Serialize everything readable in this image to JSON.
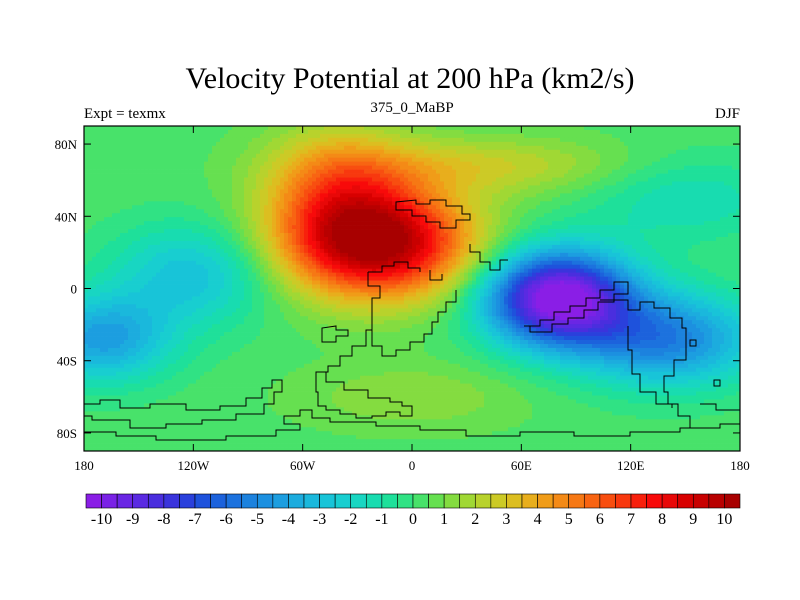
{
  "chart_data": {
    "type": "heatmap",
    "title": "Velocity Potential at 200 hPa (km2/s)",
    "left_subtitle": "Expt = texmx",
    "center_subtitle": "375_0_MaBP",
    "right_subtitle": "DJF",
    "x_range": [
      -180,
      180
    ],
    "y_range": [
      -90,
      90
    ],
    "x_ticks": [
      {
        "value": -180,
        "label": "180"
      },
      {
        "value": -120,
        "label": "120W"
      },
      {
        "value": -60,
        "label": "60W"
      },
      {
        "value": 0,
        "label": "0"
      },
      {
        "value": 60,
        "label": "60E"
      },
      {
        "value": 120,
        "label": "120E"
      },
      {
        "value": 180,
        "label": "180"
      }
    ],
    "y_ticks": [
      {
        "value": 80,
        "label": "80N"
      },
      {
        "value": 40,
        "label": "40N"
      },
      {
        "value": 0,
        "label": "0"
      },
      {
        "value": -40,
        "label": "40S"
      },
      {
        "value": -80,
        "label": "80S"
      }
    ],
    "colorbar": {
      "min": -10.5,
      "max": 10.5,
      "step": 0.5,
      "labels": [
        "-10",
        "-9",
        "-8",
        "-7",
        "-6",
        "-5",
        "-4",
        "-3",
        "-2",
        "-1",
        "0",
        "1",
        "2",
        "3",
        "4",
        "5",
        "6",
        "7",
        "8",
        "9",
        "10"
      ],
      "colors": [
        "#8a1ee6",
        "#7a22e6",
        "#6a26e4",
        "#5a2ae2",
        "#4a2ede",
        "#3a34dc",
        "#2a40dc",
        "#1e52dc",
        "#1c62dc",
        "#1c72de",
        "#1c82de",
        "#1c90e0",
        "#1c9ee0",
        "#1cacde",
        "#1ab8dc",
        "#18c4d8",
        "#18ced0",
        "#18d6c2",
        "#18dcb0",
        "#1ee09a",
        "#30e284",
        "#48e26a",
        "#66e050",
        "#84dc40",
        "#a0d834",
        "#b8d22c",
        "#ccca26",
        "#dcbe20",
        "#e8ae1c",
        "#f09c18",
        "#f48a16",
        "#f67814",
        "#f86412",
        "#f84e10",
        "#f8380e",
        "#f8200c",
        "#f80a0a",
        "#e80808",
        "#d80000",
        "#c80000",
        "#b80000",
        "#a80000"
      ]
    },
    "field_centers": [
      {
        "name": "maximum",
        "lon": -20,
        "lat": 25,
        "value": 10
      },
      {
        "name": "minimum",
        "lon": 80,
        "lat": -5,
        "value": -10
      }
    ]
  }
}
